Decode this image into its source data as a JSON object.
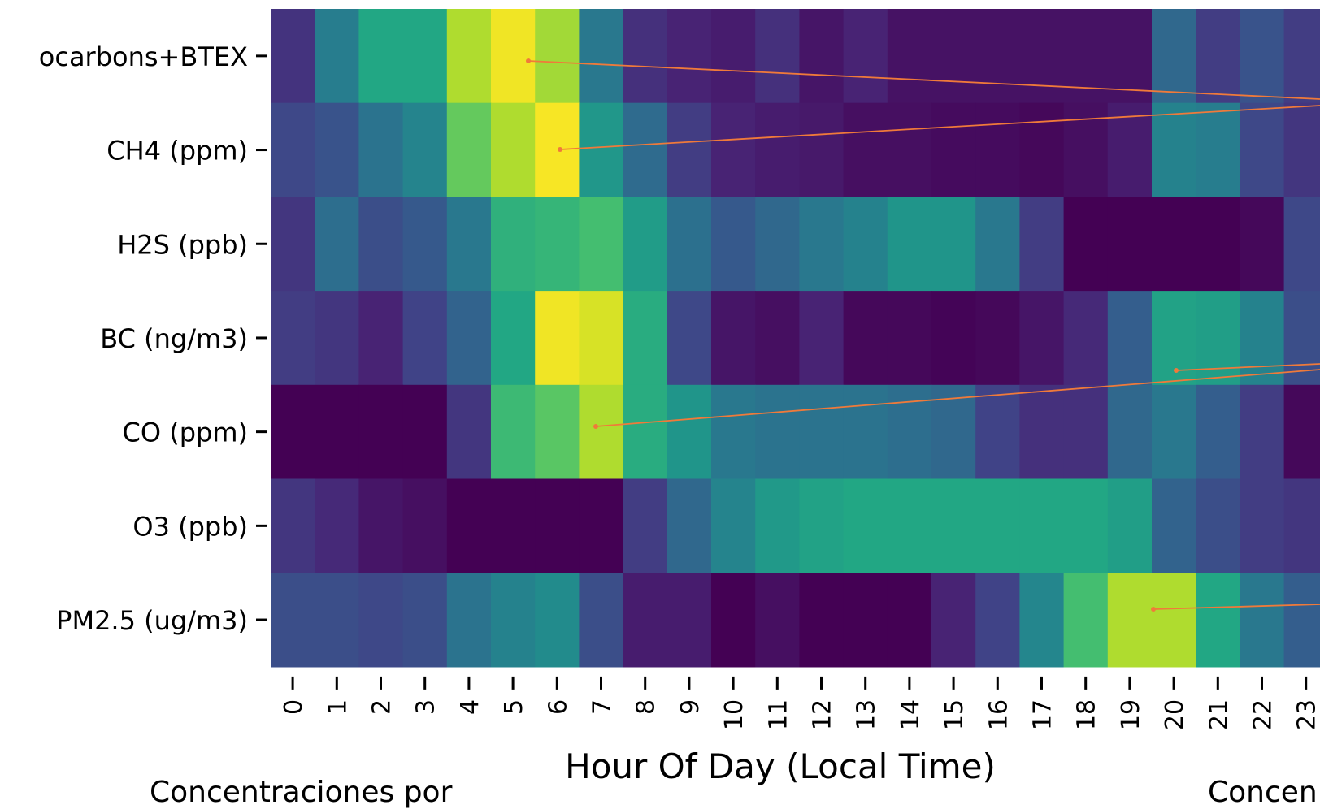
{
  "chart_data": {
    "type": "heatmap",
    "title": "",
    "xlabel": "Hour Of Day (Local Time)",
    "ylabel": "",
    "x_categories": [
      "0",
      "1",
      "2",
      "3",
      "4",
      "5",
      "6",
      "7",
      "8",
      "9",
      "10",
      "11",
      "12",
      "13",
      "14",
      "15",
      "16",
      "17",
      "18",
      "19",
      "20",
      "21",
      "22",
      "23"
    ],
    "y_categories": [
      "Hydrocarbons+BTEX",
      "CH4 (ppm)",
      "H2S (ppb)",
      "BC (ng/m3)",
      "CO (ppm)",
      "O3 (ppb)",
      "PM2.5 (ug/m3)"
    ],
    "y_tick_visible": [
      "ocarbons+BTEX",
      "CH4 (ppm)",
      "H2S (ppb)",
      "BC (ng/m3)",
      "CO (ppm)",
      "O3 (ppb)",
      "PM2.5 (ug/m3)"
    ],
    "colormap": "viridis",
    "value_range": [
      0,
      1
    ],
    "values": [
      [
        0.15,
        0.42,
        0.6,
        0.6,
        0.88,
        0.98,
        0.86,
        0.4,
        0.14,
        0.1,
        0.08,
        0.14,
        0.06,
        0.1,
        0.05,
        0.05,
        0.05,
        0.05,
        0.05,
        0.05,
        0.34,
        0.18,
        0.26,
        0.18
      ],
      [
        0.22,
        0.26,
        0.38,
        0.45,
        0.76,
        0.88,
        0.99,
        0.53,
        0.35,
        0.18,
        0.1,
        0.08,
        0.07,
        0.04,
        0.04,
        0.03,
        0.03,
        0.02,
        0.04,
        0.08,
        0.44,
        0.42,
        0.22,
        0.16
      ],
      [
        0.16,
        0.36,
        0.24,
        0.28,
        0.4,
        0.64,
        0.66,
        0.7,
        0.55,
        0.37,
        0.28,
        0.34,
        0.4,
        0.44,
        0.52,
        0.52,
        0.4,
        0.18,
        0.0,
        0.0,
        0.0,
        0.0,
        0.02,
        0.22
      ],
      [
        0.18,
        0.16,
        0.1,
        0.2,
        0.32,
        0.6,
        0.98,
        0.94,
        0.62,
        0.22,
        0.06,
        0.04,
        0.1,
        0.02,
        0.02,
        0.01,
        0.02,
        0.06,
        0.12,
        0.3,
        0.58,
        0.56,
        0.44,
        0.24
      ],
      [
        0.0,
        0.0,
        0.0,
        0.0,
        0.16,
        0.68,
        0.74,
        0.88,
        0.62,
        0.52,
        0.4,
        0.38,
        0.38,
        0.38,
        0.36,
        0.34,
        0.2,
        0.14,
        0.14,
        0.34,
        0.4,
        0.3,
        0.18,
        0.02
      ],
      [
        0.16,
        0.12,
        0.06,
        0.04,
        0.0,
        0.0,
        0.0,
        0.0,
        0.18,
        0.34,
        0.45,
        0.54,
        0.58,
        0.6,
        0.6,
        0.6,
        0.6,
        0.6,
        0.6,
        0.56,
        0.32,
        0.24,
        0.18,
        0.16
      ],
      [
        0.24,
        0.24,
        0.22,
        0.24,
        0.38,
        0.44,
        0.48,
        0.24,
        0.08,
        0.08,
        0.0,
        0.04,
        0.0,
        0.0,
        0.0,
        0.1,
        0.2,
        0.46,
        0.7,
        0.88,
        0.88,
        0.6,
        0.4,
        0.3
      ]
    ]
  },
  "annotations": {
    "arrow_color": "#f07a3a"
  },
  "captions": {
    "left": "Concentraciones por",
    "right": "Concen"
  }
}
